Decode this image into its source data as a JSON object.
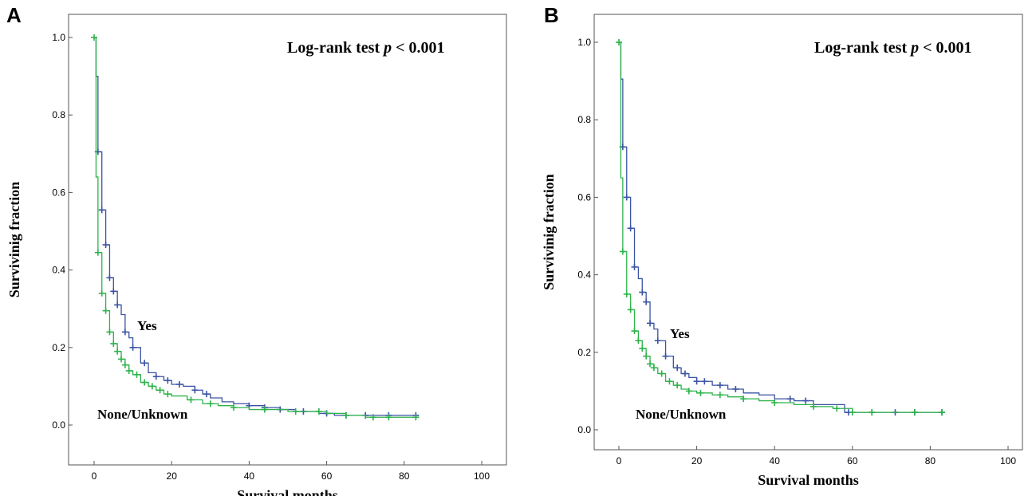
{
  "colors": {
    "yes": "#3a53a4",
    "none_unknown": "#2db34a"
  },
  "chart_data": [
    {
      "panel": "A",
      "type": "line",
      "subtype": "kaplan-meier step",
      "annotation_text": "Log-rank test ",
      "annotation_p": "p",
      "annotation_value": " < 0.001",
      "xlabel": "Survival months",
      "ylabel": "Survivinig fraction",
      "xlim": [
        0,
        100
      ],
      "ylim": [
        0,
        1
      ],
      "xticks": [
        "0",
        "20",
        "40",
        "60",
        "80",
        "100"
      ],
      "yticks": [
        "0.0",
        "0.2",
        "0.4",
        "0.6",
        "0.8",
        "1.0"
      ],
      "series": [
        {
          "name": "Yes",
          "color_key": "yes",
          "x": [
            0,
            0.5,
            1,
            2,
            3,
            4,
            5,
            6,
            7,
            8,
            9,
            10,
            12,
            14,
            16,
            18,
            20,
            23,
            26,
            28,
            30,
            33,
            36,
            40,
            44,
            48,
            52,
            58,
            62,
            70,
            83
          ],
          "y": [
            1.0,
            0.9,
            0.705,
            0.555,
            0.465,
            0.38,
            0.345,
            0.31,
            0.285,
            0.24,
            0.225,
            0.2,
            0.16,
            0.135,
            0.125,
            0.115,
            0.105,
            0.1,
            0.09,
            0.08,
            0.07,
            0.06,
            0.055,
            0.05,
            0.045,
            0.04,
            0.035,
            0.03,
            0.025,
            0.025,
            0.025
          ],
          "censor_x": [
            1,
            2,
            3,
            4,
            5,
            6,
            8,
            10,
            13,
            16,
            19,
            22,
            26,
            29,
            40,
            44,
            48,
            54,
            60,
            65,
            70,
            76,
            83
          ],
          "label": "Yes"
        },
        {
          "name": "None/Unknown",
          "color_key": "none_unknown",
          "x": [
            0,
            0.5,
            1,
            2,
            3,
            4,
            5,
            6,
            7,
            8,
            9,
            10,
            12,
            14,
            16,
            18,
            20,
            24,
            28,
            32,
            36,
            40,
            45,
            50,
            55,
            60,
            65,
            70,
            75,
            83
          ],
          "y": [
            1.0,
            0.64,
            0.445,
            0.34,
            0.295,
            0.24,
            0.21,
            0.19,
            0.17,
            0.155,
            0.14,
            0.13,
            0.11,
            0.1,
            0.09,
            0.08,
            0.075,
            0.065,
            0.055,
            0.05,
            0.045,
            0.04,
            0.04,
            0.035,
            0.035,
            0.03,
            0.025,
            0.02,
            0.02,
            0.02
          ],
          "censor_x": [
            0,
            1,
            2,
            3,
            4,
            5,
            6,
            7,
            8,
            9,
            11,
            13,
            15,
            17,
            19,
            25,
            30,
            36,
            44,
            52,
            58,
            65,
            72,
            76,
            83
          ],
          "label": "None/Unknown"
        }
      ]
    },
    {
      "panel": "B",
      "type": "line",
      "subtype": "kaplan-meier step",
      "annotation_text": "Log-rank test ",
      "annotation_p": "p",
      "annotation_value": " < 0.001",
      "xlabel": "Survival months",
      "ylabel": "Survivinig fraction",
      "xlim": [
        0,
        100
      ],
      "ylim": [
        0,
        1
      ],
      "xticks": [
        "0",
        "20",
        "40",
        "60",
        "80",
        "100"
      ],
      "yticks": [
        "0.0",
        "0.2",
        "0.4",
        "0.6",
        "0.8",
        "1.0"
      ],
      "series": [
        {
          "name": "Yes",
          "color_key": "yes",
          "x": [
            0,
            0.5,
            1,
            2,
            3,
            4,
            5,
            6,
            7,
            8,
            9,
            10,
            12,
            14,
            16,
            18,
            20,
            24,
            28,
            32,
            36,
            40,
            45,
            50,
            58,
            65,
            83
          ],
          "y": [
            1.0,
            0.905,
            0.73,
            0.6,
            0.52,
            0.42,
            0.39,
            0.355,
            0.33,
            0.275,
            0.26,
            0.23,
            0.19,
            0.16,
            0.145,
            0.135,
            0.125,
            0.115,
            0.105,
            0.095,
            0.09,
            0.08,
            0.075,
            0.065,
            0.045,
            0.045,
            0.045
          ],
          "censor_x": [
            1,
            2,
            3,
            4,
            6,
            7,
            8,
            10,
            12,
            15,
            17,
            20,
            22,
            26,
            30,
            44,
            48,
            59,
            65,
            71,
            76,
            83
          ],
          "label": "Yes"
        },
        {
          "name": "None/Unknown",
          "color_key": "none_unknown",
          "x": [
            0,
            0.5,
            1,
            2,
            3,
            4,
            5,
            6,
            7,
            8,
            9,
            10,
            12,
            14,
            16,
            18,
            20,
            24,
            28,
            32,
            36,
            40,
            45,
            50,
            55,
            60,
            70,
            83
          ],
          "y": [
            1.0,
            0.65,
            0.46,
            0.35,
            0.31,
            0.255,
            0.23,
            0.21,
            0.19,
            0.17,
            0.16,
            0.145,
            0.125,
            0.115,
            0.105,
            0.1,
            0.095,
            0.09,
            0.085,
            0.08,
            0.075,
            0.07,
            0.065,
            0.06,
            0.055,
            0.045,
            0.045,
            0.045
          ],
          "censor_x": [
            0,
            1,
            2,
            3,
            4,
            5,
            6,
            7,
            8,
            9,
            11,
            13,
            15,
            18,
            21,
            26,
            32,
            40,
            50,
            56,
            60,
            65,
            76,
            83
          ],
          "label": "None/Unknown"
        }
      ]
    }
  ]
}
